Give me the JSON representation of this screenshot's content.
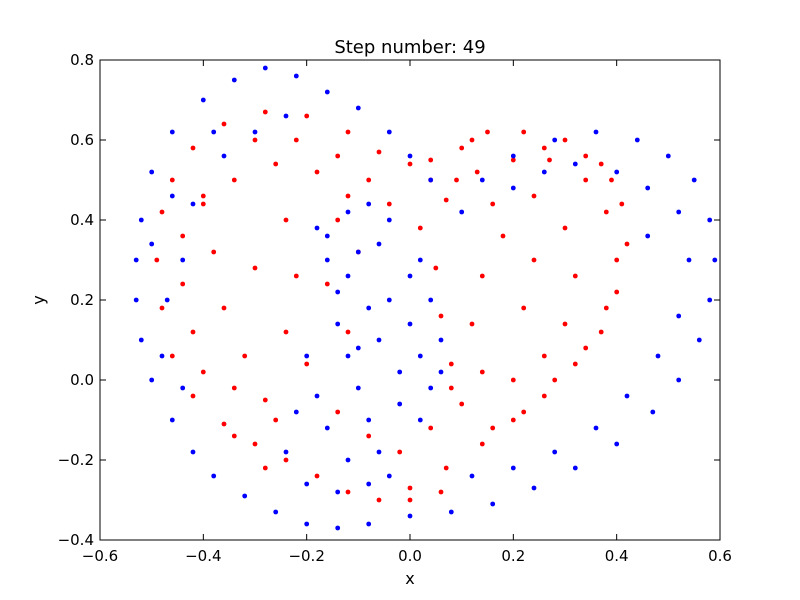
{
  "chart_data": {
    "type": "scatter",
    "title": "Step number: 49",
    "xlabel": "x",
    "ylabel": "y",
    "xlim": [
      -0.6,
      0.6
    ],
    "ylim": [
      -0.4,
      0.8
    ],
    "xticks": [
      -0.6,
      -0.4,
      -0.2,
      0.0,
      0.2,
      0.4,
      0.6
    ],
    "yticks": [
      -0.4,
      -0.2,
      0.0,
      0.2,
      0.4,
      0.6,
      0.8
    ],
    "xtick_labels": [
      "−0.6",
      "−0.4",
      "−0.2",
      "0.0",
      "0.2",
      "0.4",
      "0.6"
    ],
    "ytick_labels": [
      "−0.4",
      "−0.2",
      "0.0",
      "0.2",
      "0.4",
      "0.6",
      "0.8"
    ],
    "grid": false,
    "series": [
      {
        "color": "#ff0000",
        "points": [
          [
            -0.46,
            0.5
          ],
          [
            -0.42,
            0.58
          ],
          [
            -0.36,
            0.64
          ],
          [
            -0.28,
            0.67
          ],
          [
            -0.2,
            0.66
          ],
          [
            -0.12,
            0.62
          ],
          [
            -0.06,
            0.57
          ],
          [
            0.0,
            0.54
          ],
          [
            0.04,
            0.5
          ],
          [
            0.07,
            0.45
          ],
          [
            0.1,
            0.58
          ],
          [
            0.15,
            0.62
          ],
          [
            0.22,
            0.62
          ],
          [
            0.3,
            0.6
          ],
          [
            0.37,
            0.54
          ],
          [
            0.41,
            0.44
          ],
          [
            0.42,
            0.34
          ],
          [
            0.4,
            0.22
          ],
          [
            0.37,
            0.12
          ],
          [
            0.32,
            0.04
          ],
          [
            0.26,
            -0.04
          ],
          [
            0.2,
            -0.1
          ],
          [
            0.14,
            -0.16
          ],
          [
            0.07,
            -0.22
          ],
          [
            0.0,
            -0.27
          ],
          [
            -0.06,
            -0.3
          ],
          [
            -0.12,
            -0.28
          ],
          [
            -0.18,
            -0.24
          ],
          [
            -0.24,
            -0.2
          ],
          [
            -0.3,
            -0.16
          ],
          [
            -0.36,
            -0.11
          ],
          [
            -0.42,
            -0.04
          ],
          [
            -0.46,
            0.06
          ],
          [
            -0.48,
            0.18
          ],
          [
            -0.49,
            0.3
          ],
          [
            -0.48,
            0.42
          ],
          [
            -0.4,
            0.46
          ],
          [
            -0.34,
            0.5
          ],
          [
            -0.26,
            0.54
          ],
          [
            -0.18,
            0.52
          ],
          [
            -0.12,
            0.46
          ],
          [
            -0.38,
            0.32
          ],
          [
            -0.36,
            0.18
          ],
          [
            -0.32,
            0.06
          ],
          [
            -0.28,
            -0.05
          ],
          [
            -0.24,
            0.12
          ],
          [
            -0.22,
            0.26
          ],
          [
            -0.24,
            0.4
          ],
          [
            -0.3,
            0.28
          ],
          [
            -0.34,
            -0.02
          ],
          [
            0.02,
            0.38
          ],
          [
            0.05,
            0.28
          ],
          [
            0.06,
            0.16
          ],
          [
            0.08,
            0.04
          ],
          [
            0.1,
            -0.06
          ],
          [
            0.16,
            -0.12
          ],
          [
            0.22,
            -0.08
          ],
          [
            0.28,
            0.0
          ],
          [
            0.34,
            0.08
          ],
          [
            0.38,
            0.18
          ],
          [
            0.4,
            0.3
          ],
          [
            0.38,
            0.42
          ],
          [
            0.34,
            0.5
          ],
          [
            0.27,
            0.55
          ],
          [
            0.2,
            0.55
          ],
          [
            0.13,
            0.52
          ],
          [
            0.09,
            0.5
          ],
          [
            0.16,
            0.44
          ],
          [
            0.24,
            0.46
          ],
          [
            0.3,
            0.38
          ],
          [
            0.32,
            0.26
          ],
          [
            0.3,
            0.14
          ],
          [
            0.26,
            0.06
          ],
          [
            0.2,
            0.0
          ],
          [
            0.14,
            0.02
          ],
          [
            0.12,
            0.14
          ],
          [
            0.14,
            0.26
          ],
          [
            0.18,
            0.36
          ],
          [
            0.24,
            0.3
          ],
          [
            0.22,
            0.18
          ],
          [
            -0.14,
            0.4
          ],
          [
            -0.1,
            0.32
          ],
          [
            -0.16,
            0.24
          ],
          [
            -0.12,
            0.12
          ],
          [
            -0.2,
            0.04
          ],
          [
            -0.14,
            -0.08
          ],
          [
            -0.08,
            -0.14
          ],
          [
            -0.02,
            -0.18
          ],
          [
            0.04,
            -0.12
          ],
          [
            0.08,
            -0.02
          ],
          [
            -0.44,
            0.24
          ],
          [
            -0.42,
            0.12
          ],
          [
            -0.4,
            0.02
          ],
          [
            -0.44,
            0.36
          ],
          [
            -0.4,
            0.44
          ],
          [
            -0.3,
            0.6
          ],
          [
            -0.22,
            0.6
          ],
          [
            -0.14,
            0.56
          ],
          [
            -0.08,
            0.5
          ],
          [
            -0.04,
            0.44
          ],
          [
            0.0,
            -0.3
          ],
          [
            0.06,
            -0.28
          ],
          [
            -0.28,
            -0.22
          ],
          [
            -0.34,
            -0.14
          ],
          [
            -0.26,
            -0.1
          ],
          [
            0.26,
            0.58
          ],
          [
            0.34,
            0.56
          ],
          [
            0.39,
            0.5
          ],
          [
            0.04,
            0.55
          ],
          [
            0.12,
            0.6
          ]
        ]
      },
      {
        "color": "#0000ff",
        "points": [
          [
            -0.52,
            0.4
          ],
          [
            -0.5,
            0.52
          ],
          [
            -0.46,
            0.62
          ],
          [
            -0.4,
            0.7
          ],
          [
            -0.34,
            0.75
          ],
          [
            -0.28,
            0.78
          ],
          [
            -0.22,
            0.76
          ],
          [
            -0.16,
            0.72
          ],
          [
            -0.1,
            0.68
          ],
          [
            -0.04,
            0.62
          ],
          [
            0.0,
            0.56
          ],
          [
            0.04,
            0.5
          ],
          [
            0.1,
            0.42
          ],
          [
            0.14,
            0.5
          ],
          [
            0.2,
            0.56
          ],
          [
            0.28,
            0.6
          ],
          [
            0.36,
            0.62
          ],
          [
            0.44,
            0.6
          ],
          [
            0.5,
            0.56
          ],
          [
            0.55,
            0.5
          ],
          [
            0.58,
            0.4
          ],
          [
            0.59,
            0.3
          ],
          [
            0.58,
            0.2
          ],
          [
            0.56,
            0.1
          ],
          [
            0.52,
            0.0
          ],
          [
            0.47,
            -0.08
          ],
          [
            0.4,
            -0.16
          ],
          [
            0.32,
            -0.22
          ],
          [
            0.24,
            -0.27
          ],
          [
            0.16,
            -0.31
          ],
          [
            0.08,
            -0.33
          ],
          [
            0.0,
            -0.34
          ],
          [
            -0.08,
            -0.36
          ],
          [
            -0.14,
            -0.37
          ],
          [
            -0.2,
            -0.36
          ],
          [
            -0.26,
            -0.33
          ],
          [
            -0.32,
            -0.29
          ],
          [
            -0.38,
            -0.24
          ],
          [
            -0.42,
            -0.18
          ],
          [
            -0.46,
            -0.1
          ],
          [
            -0.5,
            0.0
          ],
          [
            -0.52,
            0.1
          ],
          [
            -0.53,
            0.2
          ],
          [
            -0.53,
            0.3
          ],
          [
            -0.47,
            0.2
          ],
          [
            -0.44,
            0.3
          ],
          [
            -0.42,
            0.44
          ],
          [
            -0.36,
            0.56
          ],
          [
            -0.3,
            0.62
          ],
          [
            -0.24,
            0.66
          ],
          [
            -0.18,
            0.38
          ],
          [
            -0.16,
            0.3
          ],
          [
            -0.14,
            0.22
          ],
          [
            -0.12,
            0.42
          ],
          [
            -0.08,
            0.44
          ],
          [
            -0.04,
            0.4
          ],
          [
            -0.06,
            0.34
          ],
          [
            -0.1,
            0.32
          ],
          [
            -0.12,
            0.26
          ],
          [
            -0.16,
            0.36
          ],
          [
            -0.14,
            0.14
          ],
          [
            -0.12,
            0.06
          ],
          [
            -0.1,
            -0.02
          ],
          [
            -0.08,
            -0.1
          ],
          [
            -0.06,
            -0.18
          ],
          [
            -0.04,
            -0.24
          ],
          [
            -0.12,
            -0.2
          ],
          [
            -0.16,
            -0.12
          ],
          [
            -0.18,
            -0.04
          ],
          [
            -0.2,
            0.06
          ],
          [
            -0.04,
            0.2
          ],
          [
            0.0,
            0.14
          ],
          [
            0.02,
            0.06
          ],
          [
            0.04,
            -0.02
          ],
          [
            0.02,
            -0.1
          ],
          [
            -0.02,
            0.02
          ],
          [
            -0.06,
            0.1
          ],
          [
            -0.08,
            0.18
          ],
          [
            0.0,
            0.26
          ],
          [
            0.02,
            0.3
          ],
          [
            0.06,
            0.02
          ],
          [
            0.06,
            0.1
          ],
          [
            0.04,
            0.2
          ],
          [
            -0.02,
            -0.06
          ],
          [
            -0.1,
            0.08
          ],
          [
            -0.14,
            -0.28
          ],
          [
            -0.2,
            -0.26
          ],
          [
            -0.08,
            -0.26
          ],
          [
            -0.24,
            -0.18
          ],
          [
            -0.22,
            -0.08
          ],
          [
            0.46,
            0.48
          ],
          [
            0.52,
            0.42
          ],
          [
            0.54,
            0.3
          ],
          [
            0.52,
            0.16
          ],
          [
            0.48,
            0.06
          ],
          [
            0.42,
            -0.04
          ],
          [
            0.36,
            -0.12
          ],
          [
            0.28,
            -0.18
          ],
          [
            0.2,
            -0.22
          ],
          [
            0.12,
            -0.24
          ],
          [
            0.2,
            0.48
          ],
          [
            0.26,
            0.52
          ],
          [
            0.32,
            0.54
          ],
          [
            0.4,
            0.52
          ],
          [
            0.46,
            0.36
          ],
          [
            -0.48,
            0.06
          ],
          [
            -0.44,
            -0.02
          ],
          [
            -0.5,
            0.34
          ],
          [
            -0.46,
            0.46
          ],
          [
            -0.38,
            0.62
          ]
        ]
      }
    ]
  }
}
